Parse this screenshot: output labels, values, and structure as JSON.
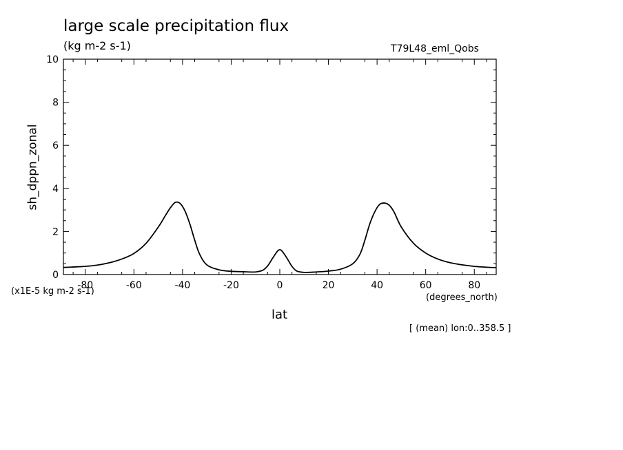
{
  "header": {
    "title": "large scale precipitation flux",
    "units": "(kg m-2 s-1)",
    "run_name": "T79L48_eml_Qobs"
  },
  "footer": {
    "scale_note": "(x1E-5 kg m-2 s-1)",
    "x_units": "(degrees_north)",
    "average_note": "[ (mean) lon:0..358.5 ]"
  },
  "chart_data": {
    "type": "line",
    "title": "large scale precipitation flux",
    "xlabel": "lat",
    "ylabel": "sh_dppn_zonal",
    "xlim": [
      -89,
      89
    ],
    "ylim": [
      0,
      10
    ],
    "x_ticks": [
      -80,
      -60,
      -40,
      -20,
      0,
      20,
      40,
      60,
      80
    ],
    "y_ticks": [
      0,
      2,
      4,
      6,
      8,
      10
    ],
    "grid": false,
    "legend": "none",
    "line_color": "#000000",
    "series": [
      {
        "x": [
          -89,
          -85,
          -80,
          -75,
          -70,
          -65,
          -60,
          -55,
          -50,
          -47,
          -45,
          -43,
          -41,
          -39,
          -37,
          -35,
          -33,
          -30,
          -25,
          -20,
          -15,
          -10,
          -7,
          -5,
          -3,
          -1,
          0,
          1,
          3,
          5,
          7,
          10,
          15,
          20,
          25,
          30,
          33,
          35,
          37,
          39,
          41,
          43,
          45,
          47,
          50,
          55,
          60,
          65,
          70,
          75,
          80,
          85,
          89
        ],
        "y": [
          0.33,
          0.35,
          0.38,
          0.44,
          0.55,
          0.72,
          0.98,
          1.45,
          2.2,
          2.75,
          3.1,
          3.35,
          3.3,
          2.95,
          2.35,
          1.6,
          0.95,
          0.45,
          0.22,
          0.15,
          0.13,
          0.12,
          0.2,
          0.4,
          0.75,
          1.08,
          1.15,
          1.08,
          0.75,
          0.38,
          0.16,
          0.1,
          0.12,
          0.16,
          0.25,
          0.5,
          0.95,
          1.6,
          2.35,
          2.9,
          3.25,
          3.32,
          3.22,
          2.9,
          2.2,
          1.45,
          1.0,
          0.72,
          0.55,
          0.45,
          0.38,
          0.34,
          0.32
        ]
      }
    ]
  }
}
